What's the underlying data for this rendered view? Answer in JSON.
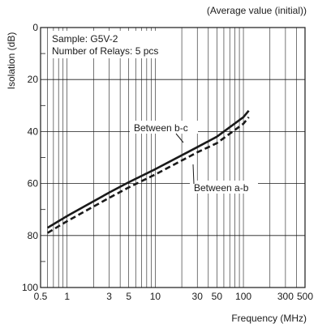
{
  "chart_data": {
    "type": "line",
    "title": "(Average value (initial))",
    "xlabel": "Frequency (MHz)",
    "ylabel": "Isolation (dB)",
    "x_scale": "log",
    "xlim": [
      0.5,
      500
    ],
    "ylim": [
      100,
      0
    ],
    "y_inverted": true,
    "x_ticks": [
      "0.5",
      "1",
      "3",
      "5",
      "10",
      "30",
      "50",
      "100",
      "300",
      "500"
    ],
    "y_ticks": [
      "0",
      "20",
      "40",
      "60",
      "80",
      "100"
    ],
    "grid": true,
    "annotation": {
      "line1": "Sample: G5V-2",
      "line2": "Number of Relays: 5 pcs"
    },
    "series": [
      {
        "name": "Between b-c",
        "style": "solid",
        "x": [
          0.6,
          1,
          3,
          5,
          10,
          30,
          50,
          100,
          115
        ],
        "y": [
          77,
          72.5,
          63.5,
          59.5,
          54.5,
          46,
          42,
          34.5,
          32
        ]
      },
      {
        "name": "Between a-b",
        "style": "dashed",
        "x": [
          0.6,
          1,
          3,
          5,
          10,
          30,
          50,
          100,
          115
        ],
        "y": [
          79,
          74.5,
          65.5,
          61.5,
          56.5,
          48,
          44.5,
          37,
          34.5
        ]
      }
    ]
  }
}
